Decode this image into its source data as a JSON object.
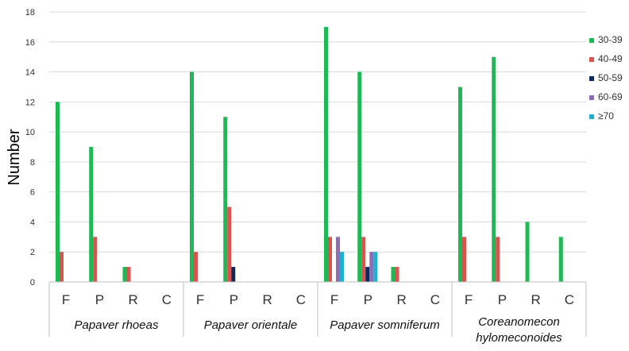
{
  "chart_data": {
    "type": "bar",
    "title": "",
    "xlabel": "",
    "ylabel": "Number",
    "ylim": [
      0,
      18
    ],
    "yticks": [
      0,
      2,
      4,
      6,
      8,
      10,
      12,
      14,
      16,
      18
    ],
    "grid": true,
    "legend_position": "right",
    "species": [
      {
        "name": "Papaver rhoeas",
        "lines": [
          "Papaver rhoeas"
        ]
      },
      {
        "name": "Papaver orientale",
        "lines": [
          "Papaver orientale"
        ]
      },
      {
        "name": "Papaver somniferum",
        "lines": [
          "Papaver somniferum"
        ]
      },
      {
        "name": "Coreanomecon hylomeconoides",
        "lines": [
          "Coreanomecon",
          "hylomeconoides"
        ]
      }
    ],
    "categories": [
      "F",
      "P",
      "R",
      "C"
    ],
    "series": [
      {
        "name": "30-39",
        "color": "#1db954",
        "values": [
          [
            12,
            9,
            1,
            0
          ],
          [
            14,
            11,
            0,
            0
          ],
          [
            17,
            14,
            1,
            0
          ],
          [
            13,
            15,
            4,
            3
          ]
        ]
      },
      {
        "name": "40-49",
        "color": "#d9534f",
        "values": [
          [
            2,
            3,
            1,
            0
          ],
          [
            2,
            5,
            0,
            0
          ],
          [
            3,
            3,
            1,
            0
          ],
          [
            3,
            3,
            0,
            0
          ]
        ]
      },
      {
        "name": "50-59",
        "color": "#0b2a5c",
        "values": [
          [
            0,
            0,
            0,
            0
          ],
          [
            0,
            1,
            0,
            0
          ],
          [
            0,
            1,
            0,
            0
          ],
          [
            0,
            0,
            0,
            0
          ]
        ]
      },
      {
        "name": "60-69",
        "color": "#8e6bb3",
        "values": [
          [
            0,
            0,
            0,
            0
          ],
          [
            0,
            0,
            0,
            0
          ],
          [
            3,
            2,
            0,
            0
          ],
          [
            0,
            0,
            0,
            0
          ]
        ]
      },
      {
        "name": "≥70",
        "color": "#1fb0d0",
        "values": [
          [
            0,
            0,
            0,
            0
          ],
          [
            0,
            0,
            0,
            0
          ],
          [
            2,
            2,
            0,
            0
          ],
          [
            0,
            0,
            0,
            0
          ]
        ]
      }
    ]
  }
}
